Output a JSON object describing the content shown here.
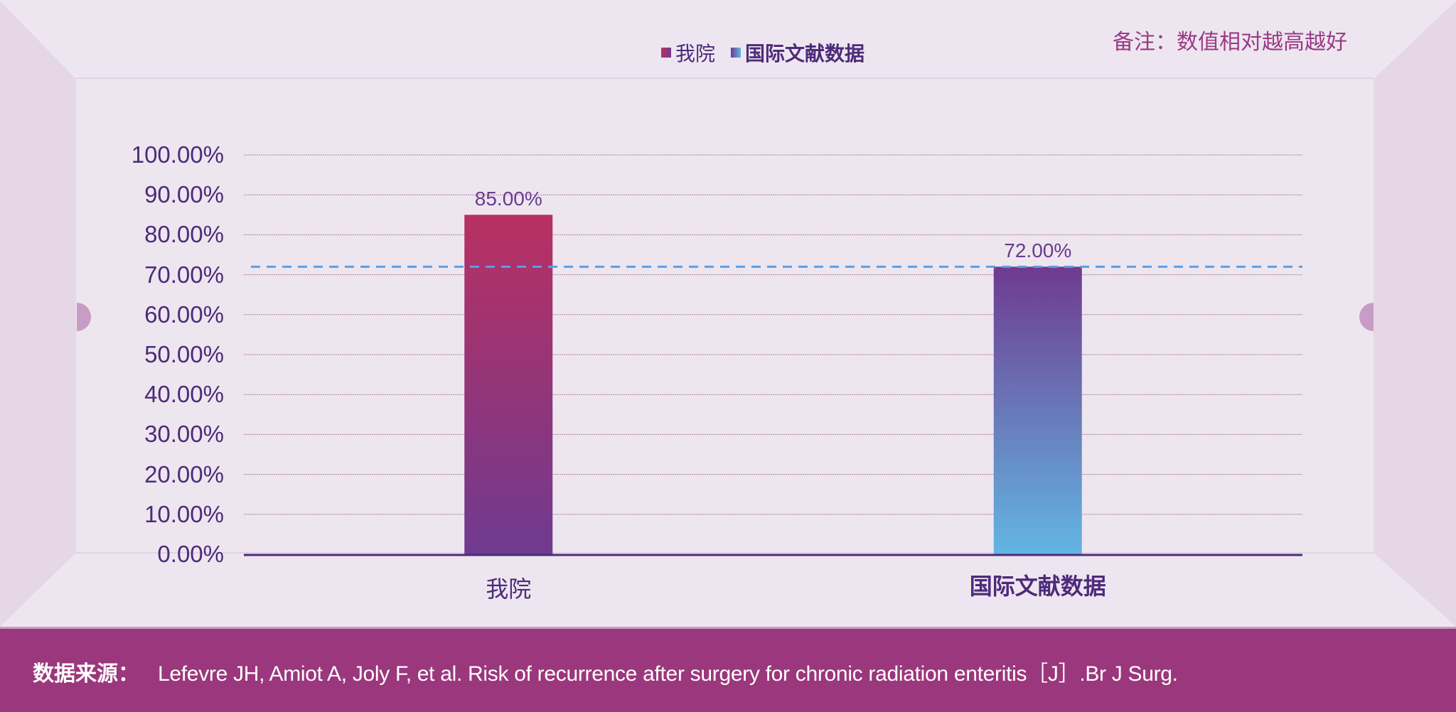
{
  "note": "备注：数值相对越高越好",
  "legend": [
    {
      "label": "我院",
      "color_top": "#b83062",
      "color_bottom": "#6f3a8f"
    },
    {
      "label": "国际文献数据",
      "color_top": "#6f3a8f",
      "color_bottom": "#62b6e2"
    }
  ],
  "footer": {
    "label": "数据来源：",
    "text": "Lefevre JH, Amiot A, Joly F, et al. Risk of recurrence after surgery for chronic radiation enteritis［J］.Br J Surg."
  },
  "colors": {
    "footer_bg": "#9b377c",
    "reference_line": "#5aa0e6",
    "axis": "#4e2a7a",
    "grid": "#b57ea6"
  },
  "chart_data": {
    "type": "bar",
    "title": "",
    "xlabel": "",
    "ylabel": "",
    "categories": [
      "我院",
      "国际文献数据"
    ],
    "values": [
      85,
      72
    ],
    "value_labels": [
      "85.00%",
      "72.00%"
    ],
    "ylim": [
      0,
      100
    ],
    "yticks": [
      0,
      10,
      20,
      30,
      40,
      50,
      60,
      70,
      80,
      90,
      100
    ],
    "ytick_labels": [
      "0.00%",
      "10.00%",
      "20.00%",
      "30.00%",
      "40.00%",
      "50.00%",
      "60.00%",
      "70.00%",
      "80.00%",
      "90.00%",
      "100.00%"
    ],
    "reference_line": 72,
    "grid": true,
    "legend_position": "top-center"
  }
}
